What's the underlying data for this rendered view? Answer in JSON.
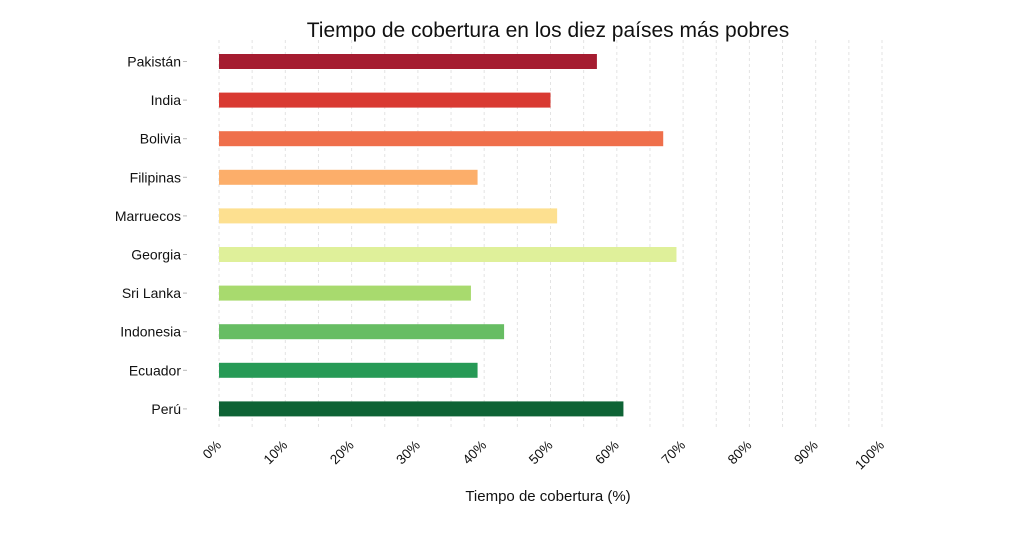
{
  "chart_data": {
    "type": "bar",
    "orientation": "horizontal",
    "title": "Tiempo de cobertura en los diez países más pobres",
    "xlabel": "Tiempo de cobertura (%)",
    "ylabel": "",
    "xlim": [
      0,
      100
    ],
    "grid": "vertical dashed",
    "legend": "none",
    "categories": [
      "Pakistán",
      "India",
      "Bolivia",
      "Filipinas",
      "Marruecos",
      "Georgia",
      "Sri Lanka",
      "Indonesia",
      "Ecuador",
      "Perú"
    ],
    "values": [
      57,
      50,
      67,
      39,
      51,
      69,
      38,
      43,
      39,
      61
    ],
    "colors": [
      "#a51c30",
      "#d93a32",
      "#ef6f4b",
      "#fcae6a",
      "#fde090",
      "#dff09a",
      "#a8da6e",
      "#67bd63",
      "#279a56",
      "#0e6335"
    ],
    "ticks": [
      0,
      10,
      20,
      30,
      40,
      50,
      60,
      70,
      80,
      90,
      100
    ],
    "tick_labels": [
      "0%",
      "10%",
      "20%",
      "30%",
      "40%",
      "50%",
      "60%",
      "70%",
      "80%",
      "90%",
      "100%"
    ]
  }
}
